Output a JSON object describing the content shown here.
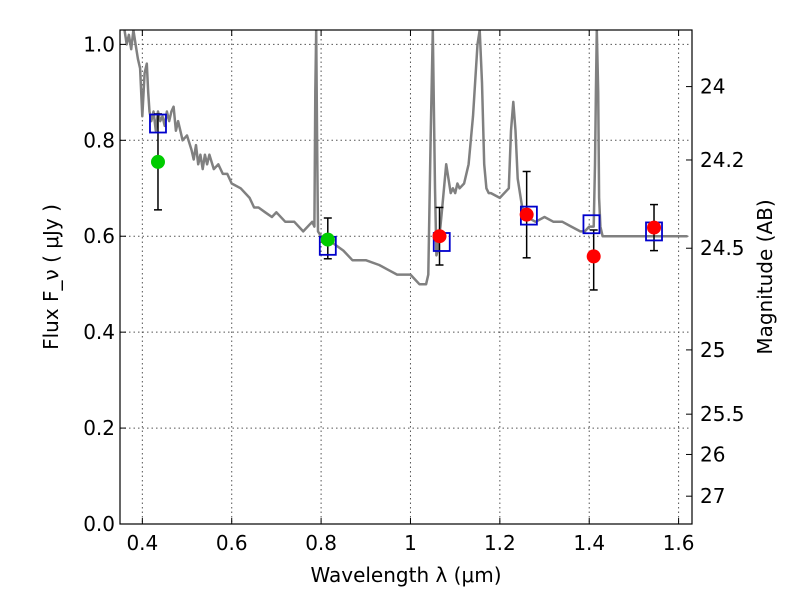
{
  "chart_data": {
    "type": "scatter",
    "xlabel": "Wavelength  λ (μm)",
    "ylabel": "Flux  F_ν  ( μJy )",
    "ylabel_right": "Magnitude (AB)",
    "xlim": [
      0.35,
      1.63
    ],
    "ylim": [
      0.0,
      1.03
    ],
    "grid": true,
    "x_ticks": [
      0.4,
      0.6,
      0.8,
      1.0,
      1.2,
      1.4,
      1.6
    ],
    "x_tick_labels": [
      "0.4",
      "0.6",
      "0.8",
      "1",
      "1.2",
      "1.4",
      "1.6"
    ],
    "y_ticks": [
      0.0,
      0.2,
      0.4,
      0.6,
      0.8,
      1.0
    ],
    "y_tick_labels": [
      "0.0",
      "0.2",
      "0.4",
      "0.6",
      "0.8",
      "1.0"
    ],
    "right_ticks": [
      {
        "label": "24",
        "flux": 0.912
      },
      {
        "label": "24.2",
        "flux": 0.759
      },
      {
        "label": "24.5",
        "flux": 0.575
      },
      {
        "label": "25",
        "flux": 0.363
      },
      {
        "label": "25.5",
        "flux": 0.229
      },
      {
        "label": "26",
        "flux": 0.145
      },
      {
        "label": "27",
        "flux": 0.058
      }
    ],
    "series": [
      {
        "kind": "model-spectrum",
        "color": "#808080",
        "x": [
          0.36,
          0.365,
          0.37,
          0.375,
          0.38,
          0.385,
          0.39,
          0.395,
          0.4,
          0.405,
          0.41,
          0.413,
          0.416,
          0.42,
          0.425,
          0.43,
          0.435,
          0.44,
          0.445,
          0.45,
          0.455,
          0.46,
          0.465,
          0.47,
          0.475,
          0.48,
          0.49,
          0.5,
          0.51,
          0.515,
          0.52,
          0.525,
          0.53,
          0.535,
          0.54,
          0.545,
          0.55,
          0.56,
          0.57,
          0.58,
          0.59,
          0.6,
          0.62,
          0.64,
          0.65,
          0.66,
          0.675,
          0.69,
          0.7,
          0.72,
          0.74,
          0.76,
          0.78,
          0.785,
          0.787,
          0.789,
          0.791,
          0.793,
          0.8,
          0.82,
          0.85,
          0.87,
          0.9,
          0.93,
          0.95,
          0.97,
          0.99,
          1.0,
          1.02,
          1.035,
          1.04,
          1.045,
          1.05,
          1.055,
          1.058,
          1.061,
          1.064,
          1.067,
          1.07,
          1.08,
          1.09,
          1.095,
          1.1,
          1.105,
          1.11,
          1.12,
          1.13,
          1.14,
          1.15,
          1.155,
          1.16,
          1.165,
          1.17,
          1.175,
          1.18,
          1.2,
          1.22,
          1.225,
          1.23,
          1.235,
          1.24,
          1.25,
          1.26,
          1.28,
          1.3,
          1.32,
          1.34,
          1.36,
          1.38,
          1.39,
          1.4,
          1.405,
          1.41,
          1.413,
          1.415,
          1.417,
          1.42,
          1.422,
          1.425,
          1.43,
          1.45,
          1.5,
          1.55,
          1.6,
          1.62
        ],
        "y": [
          1.03,
          1.0,
          1.02,
          0.99,
          1.03,
          1.0,
          0.97,
          0.95,
          0.85,
          0.94,
          0.96,
          0.9,
          0.86,
          0.84,
          0.86,
          0.82,
          0.86,
          0.84,
          0.85,
          0.83,
          0.86,
          0.84,
          0.86,
          0.87,
          0.82,
          0.84,
          0.8,
          0.81,
          0.78,
          0.76,
          0.79,
          0.75,
          0.77,
          0.74,
          0.77,
          0.75,
          0.77,
          0.74,
          0.75,
          0.73,
          0.73,
          0.71,
          0.7,
          0.68,
          0.66,
          0.66,
          0.65,
          0.64,
          0.65,
          0.63,
          0.63,
          0.61,
          0.63,
          0.62,
          0.9,
          1.03,
          0.8,
          0.61,
          0.6,
          0.59,
          0.57,
          0.55,
          0.55,
          0.54,
          0.53,
          0.52,
          0.52,
          0.52,
          0.5,
          0.5,
          0.52,
          0.8,
          1.03,
          0.7,
          0.56,
          0.57,
          0.6,
          0.62,
          0.65,
          0.75,
          0.69,
          0.7,
          0.69,
          0.71,
          0.7,
          0.71,
          0.75,
          0.85,
          1.0,
          1.03,
          0.92,
          0.75,
          0.7,
          0.69,
          0.69,
          0.68,
          0.7,
          0.82,
          0.88,
          0.82,
          0.72,
          0.66,
          0.64,
          0.63,
          0.64,
          0.63,
          0.63,
          0.62,
          0.61,
          0.61,
          0.62,
          0.62,
          0.62,
          0.75,
          0.9,
          1.03,
          0.9,
          0.68,
          0.62,
          0.6,
          0.6,
          0.6,
          0.6,
          0.6,
          0.6
        ]
      },
      {
        "kind": "model-photometry",
        "marker": "open-square",
        "color": "#0000cc",
        "x": [
          0.435,
          0.815,
          1.07,
          1.265,
          1.405,
          1.545
        ],
        "y": [
          0.835,
          0.58,
          0.588,
          0.643,
          0.625,
          0.61
        ]
      },
      {
        "kind": "observed",
        "marker": "filled-circle",
        "x": [
          0.435,
          0.815,
          1.065,
          1.26,
          1.41,
          1.545
        ],
        "y": [
          0.755,
          0.593,
          0.6,
          0.645,
          0.558,
          0.618
        ],
        "yerr_low": [
          0.1,
          0.04,
          0.06,
          0.09,
          0.07,
          0.048
        ],
        "yerr_high": [
          0.1,
          0.045,
          0.06,
          0.09,
          0.055,
          0.048
        ],
        "colors": [
          "#00cc00",
          "#00cc00",
          "#ff0000",
          "#ff0000",
          "#ff0000",
          "#ff0000"
        ]
      }
    ]
  }
}
